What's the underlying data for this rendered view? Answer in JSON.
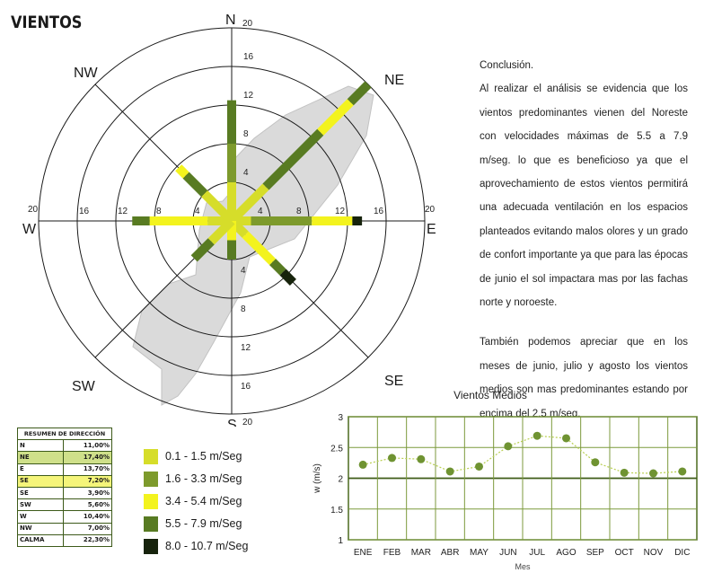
{
  "page_title": "VIENTOS",
  "conclusion": {
    "heading": "Conclusión.",
    "paragraph1": "Al realizar el análisis se evidencia que los vientos predominantes vienen del Noreste con velocidades máximas de 5.5 a 7.9 m/seg. lo que es beneficioso ya que el aprovechamiento de estos vientos permitirá una adecuada ventilación en los espacios planteados evitando malos olores y un grado de confort importante  ya que para las épocas de junio el sol impactara mas por las fachas norte y noroeste.",
    "paragraph2": "También podemos apreciar que en los meses de junio, julio y agosto los vientos medios son mas predominantes estando por encima del 2.5 m/seg."
  },
  "summary_table": {
    "title": "RESUMEN DE DIRECCIÓN",
    "rows": [
      {
        "dir": "N",
        "value": "11,00%",
        "highlight": ""
      },
      {
        "dir": "NE",
        "value": "17,40%",
        "highlight": "#cfe08a"
      },
      {
        "dir": "E",
        "value": "13,70%",
        "highlight": ""
      },
      {
        "dir": "SE",
        "value": "7,20%",
        "highlight": "#f5f57a"
      },
      {
        "dir": "SE",
        "value": "3,90%",
        "highlight": ""
      },
      {
        "dir": "SW",
        "value": "5,60%",
        "highlight": ""
      },
      {
        "dir": "W",
        "value": "10,40%",
        "highlight": ""
      },
      {
        "dir": "NW",
        "value": "7,00%",
        "highlight": ""
      },
      {
        "dir": "CALMA",
        "value": "22,30%",
        "highlight": ""
      }
    ]
  },
  "speed_legend": [
    {
      "label": "0.1 - 1.5 m/Seg",
      "color": "#d6dd2a"
    },
    {
      "label": "1.6 - 3.3 m/Seg",
      "color": "#7d9a2c"
    },
    {
      "label": "3.4 - 5.4 m/Seg",
      "color": "#f3f31e"
    },
    {
      "label": "5.5 - 7.9 m/Seg",
      "color": "#587b22"
    },
    {
      "label": "8.0 - 10.7 m/Seg",
      "color": "#17230c"
    }
  ],
  "chart_data": [
    {
      "type": "wind-rose",
      "title": "",
      "directions": [
        "N",
        "NE",
        "E",
        "SE",
        "S",
        "SW",
        "W",
        "NW"
      ],
      "rings": [
        4,
        8,
        12,
        16,
        20
      ],
      "rmax": 20,
      "ring_tick_labels": {
        "N": [
          "4",
          "8",
          "12",
          "16",
          "20"
        ],
        "S": [
          "4",
          "8",
          "12",
          "16",
          "20"
        ],
        "E": [
          "4",
          "8",
          "12",
          "16",
          "20"
        ],
        "W": [
          "4",
          "8",
          "12",
          "16",
          "20"
        ]
      },
      "speed_colors": [
        "#d6dd2a",
        "#7d9a2c",
        "#f3f31e",
        "#587b22",
        "#17230c"
      ],
      "segments": {
        "N": [
          [
            0,
            4,
            0
          ],
          [
            4,
            8,
            1
          ],
          [
            8,
            12.5,
            3
          ]
        ],
        "NE": [
          [
            0,
            5,
            0
          ],
          [
            5,
            13,
            3
          ],
          [
            13,
            17.4,
            2
          ],
          [
            17.4,
            20,
            3
          ]
        ],
        "E": [
          [
            0,
            2,
            0
          ],
          [
            2,
            8.3,
            1
          ],
          [
            8.3,
            12.5,
            2
          ],
          [
            12.5,
            13.5,
            4
          ]
        ],
        "SE": [
          [
            0,
            2,
            0
          ],
          [
            2,
            6,
            2
          ],
          [
            6,
            7.5,
            3
          ],
          [
            7.5,
            9,
            4
          ]
        ],
        "S": [
          [
            0,
            2,
            2
          ],
          [
            2,
            4,
            3
          ]
        ],
        "SW": [
          [
            0,
            3,
            0
          ],
          [
            3,
            5.5,
            3
          ]
        ],
        "W": [
          [
            0,
            2.5,
            0
          ],
          [
            2.5,
            8.5,
            2
          ],
          [
            8.5,
            10.3,
            3
          ]
        ],
        "NW": [
          [
            0,
            4,
            0
          ],
          [
            4,
            6.7,
            3
          ],
          [
            6.7,
            7.8,
            2
          ]
        ]
      }
    },
    {
      "type": "line",
      "title": "Vientos Medios",
      "xlabel": "Mes",
      "ylabel": "w (m/s)",
      "categories": [
        "ENE",
        "FEB",
        "MAR",
        "ABR",
        "MAY",
        "JUN",
        "JUL",
        "AGO",
        "SEP",
        "OCT",
        "NOV",
        "DIC"
      ],
      "values": [
        2.22,
        2.33,
        2.31,
        2.11,
        2.19,
        2.52,
        2.69,
        2.65,
        2.26,
        2.09,
        2.08,
        2.11
      ],
      "ylim": [
        1,
        3
      ],
      "yticks": [
        "1",
        "1.5",
        "2",
        "2.5",
        "3"
      ],
      "line_color": "#b8cf4f",
      "marker_color": "#6f9332"
    }
  ]
}
